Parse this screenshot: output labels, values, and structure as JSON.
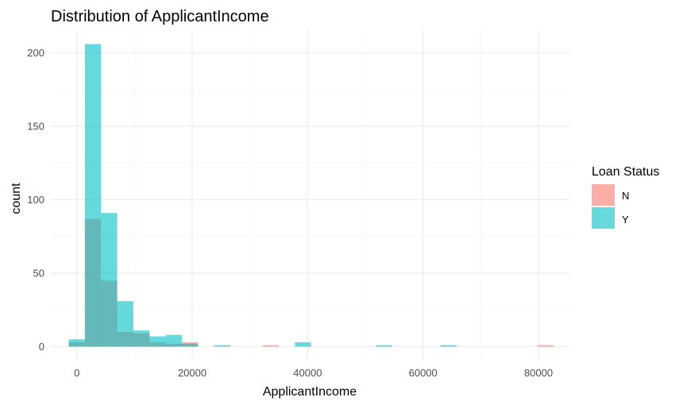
{
  "chart_data": {
    "type": "bar",
    "title": "Distribution of ApplicantIncome",
    "xlabel": "ApplicantIncome",
    "ylabel": "count",
    "xlim": [
      -4500,
      85500
    ],
    "ylim": [
      -10,
      216
    ],
    "x_ticks": [
      0,
      20000,
      40000,
      60000,
      80000
    ],
    "x_tick_labels": [
      "0",
      "20000",
      "40000",
      "60000",
      "80000"
    ],
    "y_ticks": [
      0,
      50,
      100,
      150,
      200
    ],
    "y_tick_labels": [
      "0",
      "50",
      "100",
      "150",
      "200"
    ],
    "grid": true,
    "bin_width": 2800,
    "bin_centers": [
      0,
      2800,
      5600,
      8400,
      11200,
      14000,
      16800,
      19600,
      22400,
      25200,
      28000,
      30800,
      33600,
      36400,
      39200,
      42000,
      44800,
      47600,
      50400,
      53200,
      56000,
      58800,
      61600,
      64400,
      67200,
      70000,
      72800,
      75600,
      78400,
      81200
    ],
    "series": [
      {
        "name": "N",
        "color": "#F8766D",
        "values": [
          3,
          87,
          45,
          10,
          9,
          3,
          2,
          3,
          0,
          0,
          0,
          0,
          1,
          0,
          0,
          0,
          0,
          0,
          0,
          0,
          0,
          0,
          0,
          0,
          0,
          0,
          0,
          0,
          0,
          1
        ]
      },
      {
        "name": "Y",
        "color": "#00BFC4",
        "values": [
          5,
          206,
          91,
          31,
          11,
          7,
          8,
          2,
          0,
          1,
          0,
          0,
          0,
          0,
          3,
          0,
          0,
          0,
          0,
          1,
          0,
          0,
          0,
          1,
          0,
          0,
          0,
          0,
          0,
          0
        ]
      }
    ],
    "legend": {
      "title": "Loan Status",
      "position": "right",
      "entries": [
        "N",
        "Y"
      ]
    }
  }
}
